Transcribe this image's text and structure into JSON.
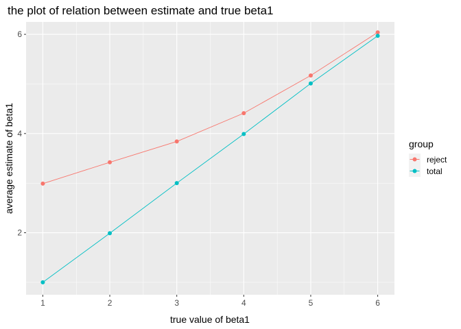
{
  "chart_data": {
    "type": "line",
    "title": "the plot of relation between estimate and true beta1",
    "xlabel": "true value of beta1",
    "ylabel": "average estimate of beta1",
    "x": [
      1,
      2,
      3,
      4,
      5,
      6
    ],
    "xlim": [
      0.75,
      6.25
    ],
    "ylim": [
      0.75,
      6.25
    ],
    "x_ticks": [
      "1",
      "2",
      "3",
      "4",
      "5",
      "6"
    ],
    "y_ticks": [
      "2",
      "4",
      "6"
    ],
    "grid": true,
    "legend": {
      "title": "group",
      "position": "right"
    },
    "series": [
      {
        "name": "reject",
        "color": "#F8766D",
        "values": [
          2.99,
          3.42,
          3.84,
          4.41,
          5.17,
          6.04
        ]
      },
      {
        "name": "total",
        "color": "#00BFC4",
        "values": [
          1.0,
          1.99,
          3.0,
          3.99,
          5.01,
          5.97
        ]
      }
    ]
  }
}
